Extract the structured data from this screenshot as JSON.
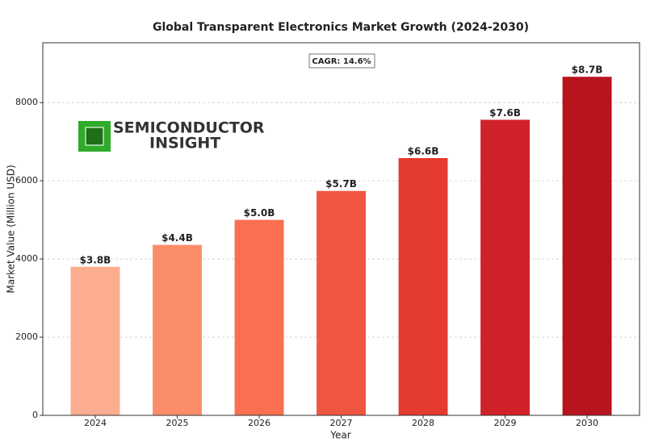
{
  "logo": {
    "line1": "SEMICONDUCTOR",
    "line2": "INSIGHT"
  },
  "chart_data": {
    "type": "bar",
    "title": "Global Transparent Electronics Market Growth (2024-2030)",
    "x_label": "Year",
    "y_label": "Market Value (Million USD)",
    "annotation": "CAGR: 14.6%",
    "categories": [
      "2024",
      "2025",
      "2026",
      "2027",
      "2028",
      "2029",
      "2030"
    ],
    "values": [
      3800,
      4360,
      5000,
      5740,
      6580,
      7560,
      8660
    ],
    "value_labels": [
      "$3.8B",
      "$4.4B",
      "$5.0B",
      "$5.7B",
      "$6.6B",
      "$7.6B",
      "$8.7B"
    ],
    "colors": [
      "#fcad8f",
      "#fc8d6b",
      "#f96f50",
      "#f15640",
      "#e53a2f",
      "#d1222a",
      "#b8141d"
    ],
    "ylim": [
      0,
      9530
    ],
    "yticks": [
      0,
      2000,
      4000,
      6000,
      8000
    ],
    "grid": true
  }
}
